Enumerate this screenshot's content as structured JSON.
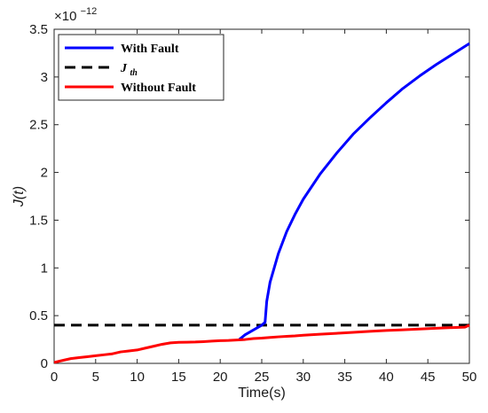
{
  "chart_data": {
    "type": "line",
    "title": "",
    "xlabel": "Time(s)",
    "ylabel": "J(t)",
    "xlim": [
      0,
      50
    ],
    "ylim": [
      0,
      3.5
    ],
    "y_exponent_label": "×10",
    "y_exponent_power": "−12",
    "x_ticks": [
      0,
      5,
      10,
      15,
      20,
      25,
      30,
      35,
      40,
      45,
      50
    ],
    "x_tick_labels": [
      "0",
      "5",
      "10",
      "15",
      "20",
      "25",
      "30",
      "35",
      "40",
      "45",
      "50"
    ],
    "y_ticks": [
      0,
      0.5,
      1,
      1.5,
      2,
      2.5,
      3,
      3.5
    ],
    "y_tick_labels": [
      "0",
      "0.5",
      "1",
      "1.5",
      "2",
      "2.5",
      "3",
      "3.5"
    ],
    "grid": false,
    "legend_position": "top-left",
    "series": [
      {
        "name": "With Fault",
        "color": "#0000ff",
        "style": "solid",
        "x": [
          22.3,
          23,
          24,
          25,
          25.4,
          25.6,
          26,
          26.5,
          27,
          28,
          29,
          30,
          32,
          34,
          36,
          38,
          40,
          42,
          44,
          46,
          48,
          50
        ],
        "y": [
          0.25,
          0.3,
          0.35,
          0.4,
          0.43,
          0.65,
          0.85,
          1.0,
          1.15,
          1.38,
          1.56,
          1.72,
          1.98,
          2.2,
          2.4,
          2.57,
          2.73,
          2.88,
          3.01,
          3.13,
          3.24,
          3.35
        ]
      },
      {
        "name": "J_th",
        "color": "#000000",
        "style": "dashed",
        "x": [
          0,
          50
        ],
        "y": [
          0.4,
          0.4
        ]
      },
      {
        "name": "Without Fault",
        "color": "#ff0000",
        "style": "solid",
        "x": [
          0,
          1,
          2,
          3,
          4,
          5,
          6,
          7,
          8,
          9,
          10,
          11,
          12,
          13,
          14,
          15,
          16,
          17,
          18,
          19,
          20,
          21,
          22,
          23,
          24,
          25,
          26,
          27,
          28,
          29,
          30,
          32,
          34,
          36,
          38,
          40,
          42,
          44,
          46,
          48,
          49.5,
          50
        ],
        "y": [
          0.01,
          0.03,
          0.05,
          0.06,
          0.07,
          0.08,
          0.09,
          0.1,
          0.12,
          0.13,
          0.14,
          0.16,
          0.18,
          0.2,
          0.215,
          0.22,
          0.222,
          0.224,
          0.228,
          0.233,
          0.238,
          0.24,
          0.245,
          0.25,
          0.26,
          0.265,
          0.272,
          0.278,
          0.283,
          0.288,
          0.295,
          0.305,
          0.315,
          0.325,
          0.335,
          0.345,
          0.352,
          0.36,
          0.368,
          0.375,
          0.38,
          0.4
        ]
      }
    ],
    "legend": [
      {
        "label": "With Fault",
        "series": 0
      },
      {
        "label": "J",
        "sub": "th",
        "series": 1
      },
      {
        "label": "Without Fault",
        "series": 2
      }
    ]
  }
}
